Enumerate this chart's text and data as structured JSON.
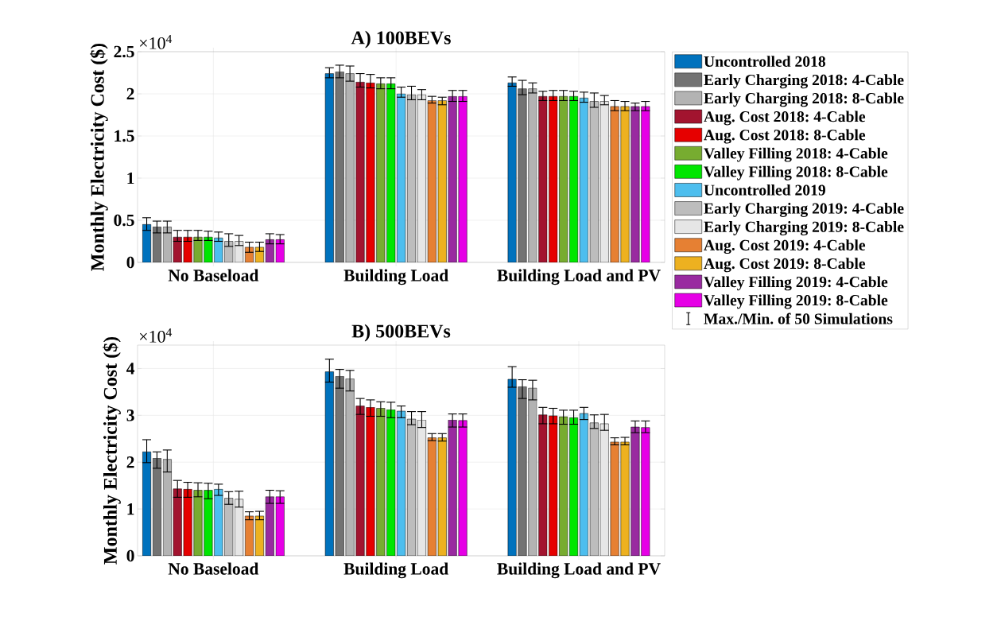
{
  "chart_data": [
    {
      "type": "bar",
      "title": "A) 100BEVs",
      "ylabel": "Monthly Electricity Cost ($)",
      "categories": [
        "No Baseload",
        "Building Load",
        "Building Load and PV"
      ],
      "ylim": [
        0,
        2.5
      ],
      "yticks": [
        0,
        0.5,
        1,
        1.5,
        2,
        2.5
      ],
      "grid": true,
      "legend": "right",
      "annotations": [
        "×10$^{4}$",
        "Max./Min. of 50 Simulations"
      ],
      "series": [
        {
          "name": "Uncontrolled 2018",
          "color": "#0072bd",
          "values": [
            0.45,
            2.24,
            2.13
          ],
          "errors": [
            [
              0.38,
              0.53
            ],
            [
              2.19,
              2.31
            ],
            [
              2.09,
              2.2
            ]
          ]
        },
        {
          "name": "Early Charging 2018: 4-Cable",
          "color": "#737373",
          "values": [
            0.42,
            2.26,
            2.06
          ],
          "errors": [
            [
              0.35,
              0.49
            ],
            [
              2.19,
              2.34
            ],
            [
              1.99,
              2.16
            ]
          ]
        },
        {
          "name": "Early Charging 2018: 8-Cable",
          "color": "#b3b3b3",
          "values": [
            0.42,
            2.24,
            2.06
          ],
          "errors": [
            [
              0.35,
              0.49
            ],
            [
              2.15,
              2.33
            ],
            [
              2.01,
              2.13
            ]
          ]
        },
        {
          "name": "Aug. Cost 2018: 4-Cable",
          "color": "#a2142f",
          "values": [
            0.3,
            2.14,
            1.97
          ],
          "errors": [
            [
              0.25,
              0.38
            ],
            [
              2.08,
              2.24
            ],
            [
              1.92,
              2.03
            ]
          ]
        },
        {
          "name": "Aug. Cost 2018: 8-Cable",
          "color": "#e60000",
          "values": [
            0.3,
            2.13,
            1.97
          ],
          "errors": [
            [
              0.25,
              0.38
            ],
            [
              2.07,
              2.23
            ],
            [
              1.92,
              2.04
            ]
          ]
        },
        {
          "name": "Valley Filling 2018: 4-Cable",
          "color": "#77ac30",
          "values": [
            0.3,
            2.12,
            1.97
          ],
          "errors": [
            [
              0.26,
              0.38
            ],
            [
              2.06,
              2.19
            ],
            [
              1.92,
              2.04
            ]
          ]
        },
        {
          "name": "Valley Filling 2018: 8-Cable",
          "color": "#00e600",
          "values": [
            0.3,
            2.12,
            1.97
          ],
          "errors": [
            [
              0.26,
              0.37
            ],
            [
              2.06,
              2.19
            ],
            [
              1.92,
              2.03
            ]
          ]
        },
        {
          "name": "Uncontrolled 2019",
          "color": "#4dbeee",
          "values": [
            0.29,
            2.0,
            1.95
          ],
          "errors": [
            [
              0.25,
              0.36
            ],
            [
              1.96,
              2.08
            ],
            [
              1.9,
              2.02
            ]
          ]
        },
        {
          "name": "Early Charging 2019: 4-Cable",
          "color": "#bdbdbd",
          "values": [
            0.25,
            1.99,
            1.91
          ],
          "errors": [
            [
              0.19,
              0.34
            ],
            [
              1.93,
              2.09
            ],
            [
              1.84,
              2.01
            ]
          ]
        },
        {
          "name": "Early Charging 2019: 8-Cable",
          "color": "#e6e6e6",
          "values": [
            0.25,
            1.99,
            1.91
          ],
          "errors": [
            [
              0.2,
              0.32
            ],
            [
              1.93,
              2.05
            ],
            [
              1.87,
              1.98
            ]
          ]
        },
        {
          "name": "Aug. Cost 2019: 4-Cable",
          "color": "#e68033",
          "values": [
            0.18,
            1.92,
            1.85
          ],
          "errors": [
            [
              0.12,
              0.24
            ],
            [
              1.89,
              1.97
            ],
            [
              1.8,
              1.92
            ]
          ]
        },
        {
          "name": "Aug. Cost 2019: 8-Cable",
          "color": "#edb120",
          "values": [
            0.18,
            1.92,
            1.85
          ],
          "errors": [
            [
              0.13,
              0.24
            ],
            [
              1.87,
              1.96
            ],
            [
              1.8,
              1.91
            ]
          ]
        },
        {
          "name": "Valley Filling 2019: 4-Cable",
          "color": "#992aa0",
          "values": [
            0.27,
            1.97,
            1.85
          ],
          "errors": [
            [
              0.22,
              0.34
            ],
            [
              1.91,
              2.04
            ],
            [
              1.8,
              1.89
            ]
          ]
        },
        {
          "name": "Valley Filling 2019: 8-Cable",
          "color": "#e600e6",
          "values": [
            0.27,
            1.97,
            1.85
          ],
          "errors": [
            [
              0.22,
              0.33
            ],
            [
              1.91,
              2.04
            ],
            [
              1.8,
              1.91
            ]
          ]
        }
      ]
    },
    {
      "type": "bar",
      "title": "B) 500BEVs",
      "ylabel": "Monthly Electricity Cost ($)",
      "categories": [
        "No Baseload",
        "Building Load",
        "Building Load and PV"
      ],
      "ylim": [
        0,
        4.5
      ],
      "yticks": [
        0,
        1,
        2,
        3,
        4
      ],
      "grid": true,
      "annotations": [
        "×10$^{4}$"
      ],
      "series": [
        {
          "color": "#0072bd",
          "values": [
            2.22,
            3.93,
            3.77
          ],
          "errors": [
            [
              1.99,
              2.48
            ],
            [
              3.71,
              4.2
            ],
            [
              3.6,
              4.04
            ]
          ]
        },
        {
          "color": "#737373",
          "values": [
            2.08,
            3.83,
            3.61
          ],
          "errors": [
            [
              1.87,
              2.22
            ],
            [
              3.58,
              3.98
            ],
            [
              3.36,
              3.76
            ]
          ]
        },
        {
          "color": "#b3b3b3",
          "values": [
            2.06,
            3.78,
            3.58
          ],
          "errors": [
            [
              1.79,
              2.26
            ],
            [
              3.52,
              3.96
            ],
            [
              3.33,
              3.75
            ]
          ]
        },
        {
          "color": "#a2142f",
          "values": [
            1.43,
            3.2,
            3.01
          ],
          "errors": [
            [
              1.25,
              1.61
            ],
            [
              3.02,
              3.36
            ],
            [
              2.82,
              3.17
            ]
          ]
        },
        {
          "color": "#e60000",
          "values": [
            1.42,
            3.17,
            2.99
          ],
          "errors": [
            [
              1.25,
              1.57
            ],
            [
              2.98,
              3.33
            ],
            [
              2.82,
              3.15
            ]
          ]
        },
        {
          "color": "#77ac30",
          "values": [
            1.4,
            3.15,
            2.97
          ],
          "errors": [
            [
              1.26,
              1.56
            ],
            [
              2.98,
              3.29
            ],
            [
              2.81,
              3.11
            ]
          ]
        },
        {
          "color": "#00e600",
          "values": [
            1.4,
            3.12,
            2.95
          ],
          "errors": [
            [
              1.22,
              1.55
            ],
            [
              2.95,
              3.28
            ],
            [
              2.81,
              3.11
            ]
          ]
        },
        {
          "color": "#4dbeee",
          "values": [
            1.42,
            3.09,
            3.04
          ],
          "errors": [
            [
              1.29,
              1.53
            ],
            [
              2.95,
              3.2
            ],
            [
              2.91,
              3.17
            ]
          ]
        },
        {
          "color": "#bdbdbd",
          "values": [
            1.23,
            2.92,
            2.84
          ],
          "errors": [
            [
              1.1,
              1.37
            ],
            [
              2.8,
              3.08
            ],
            [
              2.72,
              3.01
            ]
          ]
        },
        {
          "color": "#e6e6e6",
          "values": [
            1.21,
            2.9,
            2.82
          ],
          "errors": [
            [
              1.04,
              1.38
            ],
            [
              2.74,
              3.08
            ],
            [
              2.68,
              3.02
            ]
          ]
        },
        {
          "color": "#e68033",
          "values": [
            0.85,
            2.52,
            2.43
          ],
          "errors": [
            [
              0.77,
              0.94
            ],
            [
              2.46,
              2.61
            ],
            [
              2.37,
              2.52
            ]
          ]
        },
        {
          "color": "#edb120",
          "values": [
            0.85,
            2.52,
            2.43
          ],
          "errors": [
            [
              0.77,
              0.95
            ],
            [
              2.45,
              2.61
            ],
            [
              2.37,
              2.53
            ]
          ]
        },
        {
          "color": "#992aa0",
          "values": [
            1.26,
            2.9,
            2.75
          ],
          "errors": [
            [
              1.12,
              1.4
            ],
            [
              2.75,
              3.03
            ],
            [
              2.63,
              2.88
            ]
          ]
        },
        {
          "color": "#e600e6",
          "values": [
            1.26,
            2.89,
            2.74
          ],
          "errors": [
            [
              1.12,
              1.39
            ],
            [
              2.75,
              3.03
            ],
            [
              2.63,
              2.88
            ]
          ]
        }
      ]
    }
  ]
}
